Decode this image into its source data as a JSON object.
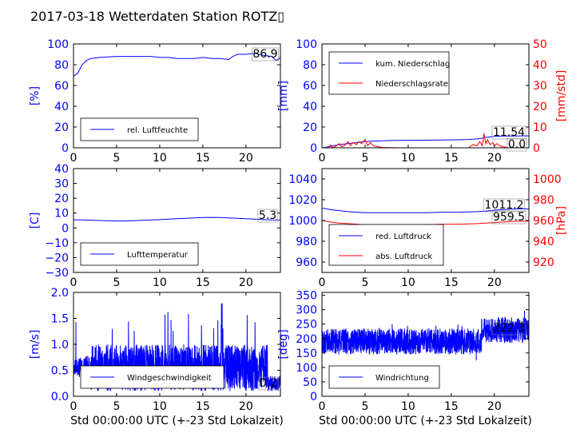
{
  "title": "2017-03-18 Wetterdaten Station ROTZ▯",
  "chart_data": [
    {
      "id": "hum",
      "type": "line",
      "ylabel": "[%]",
      "ylim": [
        0,
        100
      ],
      "yticks": [
        "0",
        "20",
        "40",
        "60",
        "80",
        "100"
      ],
      "xlim": [
        0,
        24
      ],
      "xticks": [
        "0",
        "5",
        "10",
        "15",
        "20"
      ],
      "annotations": [
        "86.9"
      ],
      "series": [
        {
          "name": "rel. Luftfeuchte",
          "color": "#0000ff",
          "x": [
            0,
            0.5,
            1,
            1.5,
            2,
            3,
            4,
            5,
            6,
            7,
            8,
            9,
            10,
            11,
            12,
            13,
            14,
            15,
            16,
            17,
            18,
            18.5,
            19,
            20,
            21,
            22,
            23,
            23.5,
            24
          ],
          "y": [
            69,
            72,
            80,
            84,
            86,
            87,
            87.5,
            88,
            88,
            88,
            88,
            88,
            87,
            87,
            86,
            86,
            86,
            87,
            86,
            86,
            85,
            88,
            90,
            90,
            91,
            89,
            88,
            84,
            86.9
          ]
        }
      ]
    },
    {
      "id": "rain",
      "type": "line",
      "ylabel": "[mm]",
      "ylim": [
        0,
        100
      ],
      "yticks": [
        "0",
        "20",
        "40",
        "60",
        "80",
        "100"
      ],
      "y2label": "[mm/std]",
      "y2lim": [
        0,
        50
      ],
      "y2ticks": [
        "0",
        "10",
        "20",
        "30",
        "40",
        "50"
      ],
      "xlim": [
        0,
        24
      ],
      "xticks": [
        "0",
        "5",
        "10",
        "15",
        "20"
      ],
      "annotations": [
        "11.54",
        "0.0"
      ],
      "series": [
        {
          "name": "kum. Niederschlag",
          "color": "#0000ff",
          "axis": "left",
          "x": [
            0,
            0.5,
            1,
            2,
            3,
            4,
            5,
            6,
            8,
            10,
            12,
            14,
            16,
            17,
            18,
            18.5,
            19,
            20,
            21,
            22,
            23,
            24
          ],
          "y": [
            0,
            0.5,
            1.5,
            3,
            4,
            5,
            6,
            6.5,
            7,
            7.2,
            7.3,
            7.5,
            7.8,
            8,
            8.5,
            9,
            10,
            11,
            11.3,
            11.4,
            11.5,
            11.54
          ]
        },
        {
          "name": "Niederschlagsrate",
          "color": "#ff0000",
          "axis": "right",
          "x": [
            0,
            0.8,
            1,
            1.2,
            1.5,
            2,
            2.3,
            2.6,
            3,
            3.3,
            3.6,
            4,
            4.3,
            4.6,
            5,
            5.3,
            5.6,
            6,
            6.5,
            7,
            9,
            12,
            15,
            17,
            17.5,
            18,
            18.3,
            18.6,
            18.8,
            19,
            19.2,
            19.5,
            19.8,
            20,
            20.3,
            20.6,
            21,
            21.5,
            22,
            23,
            24
          ],
          "y": [
            0,
            0,
            1.5,
            0,
            0.5,
            2,
            0.5,
            1,
            3,
            1,
            2.5,
            1.5,
            3,
            2,
            4,
            1,
            2.5,
            1,
            0.5,
            0.2,
            0,
            0,
            0,
            0,
            1.5,
            1,
            3,
            1,
            7,
            2,
            4,
            1.5,
            2.5,
            1,
            2,
            1,
            0.5,
            0.2,
            0,
            0,
            0
          ]
        }
      ]
    },
    {
      "id": "temp",
      "type": "line",
      "ylabel": "[C]",
      "ylim": [
        -30,
        40
      ],
      "yticks": [
        "−30",
        "−20",
        "−10",
        "0",
        "10",
        "20",
        "30",
        "40"
      ],
      "xlim": [
        0,
        24
      ],
      "xticks": [
        "0",
        "5",
        "10",
        "15",
        "20"
      ],
      "annotations": [
        "5.3"
      ],
      "series": [
        {
          "name": "Lufttemperatur",
          "color": "#0000ff",
          "x": [
            0,
            1,
            2,
            3,
            4,
            5,
            6,
            7,
            8,
            9,
            10,
            11,
            12,
            13,
            14,
            15,
            16,
            17,
            18,
            19,
            20,
            21,
            22,
            23,
            24
          ],
          "y": [
            5.5,
            5.4,
            5.2,
            5,
            4.8,
            4.7,
            4.7,
            4.9,
            5.1,
            5.3,
            5.6,
            5.9,
            6.2,
            6.5,
            6.8,
            7,
            7.1,
            7,
            6.8,
            6.5,
            6.2,
            5.9,
            5.6,
            5.4,
            5.3
          ]
        }
      ]
    },
    {
      "id": "press",
      "type": "line",
      "ylabel": "",
      "ylim": [
        950,
        1050
      ],
      "yticks": [
        "960",
        "980",
        "1000",
        "1020",
        "1040"
      ],
      "y2label": "[hPa]",
      "y2lim": [
        910,
        1010
      ],
      "y2ticks": [
        "920",
        "940",
        "960",
        "980",
        "1000"
      ],
      "xlim": [
        0,
        24
      ],
      "xticks": [
        "0",
        "5",
        "10",
        "15",
        "20"
      ],
      "annotations": [
        "1011.2",
        "959.5"
      ],
      "series": [
        {
          "name": "red. Luftdruck",
          "color": "#0000ff",
          "axis": "left",
          "x": [
            0,
            1,
            2,
            3,
            4,
            5,
            6,
            8,
            10,
            12,
            14,
            16,
            18,
            19,
            20,
            21,
            22,
            23,
            24
          ],
          "y": [
            1012,
            1010.5,
            1009.5,
            1008.5,
            1008,
            1007.5,
            1007.5,
            1007.5,
            1007.5,
            1007.5,
            1008,
            1008,
            1008.5,
            1009,
            1010,
            1010.5,
            1011,
            1011.2,
            1011.2
          ]
        },
        {
          "name": "abs. Luftdruck",
          "color": "#ff0000",
          "axis": "right",
          "x": [
            0,
            1,
            2,
            3,
            4,
            5,
            6,
            8,
            10,
            12,
            14,
            16,
            18,
            19,
            20,
            21,
            22,
            23,
            24
          ],
          "y": [
            960,
            958.5,
            957.5,
            957,
            956.5,
            956,
            956,
            956,
            956,
            956,
            956.5,
            956.5,
            957,
            957.5,
            958,
            958.5,
            959,
            959.3,
            959.5
          ]
        }
      ]
    },
    {
      "id": "wind",
      "type": "line",
      "ylabel": "[m/s]",
      "ylim": [
        0,
        2
      ],
      "yticks": [
        "0.0",
        "0.5",
        "1.0",
        "1.5",
        "2.0"
      ],
      "xlim": [
        0,
        24
      ],
      "xticks": [
        "0",
        "5",
        "10",
        "15",
        "20"
      ],
      "xlabel": "Std 00:00:00 UTC (+-23 Std Lokalzeit)",
      "annotations": [
        "0.2"
      ],
      "series": [
        {
          "name": "Windgeschwindigkeit",
          "color": "#0000ff",
          "noise": {
            "base": 0.55,
            "amp": 0.45,
            "peak_x": 17.2,
            "peak_y": 1.78
          }
        }
      ]
    },
    {
      "id": "dir",
      "type": "line",
      "ylabel": "[deg]",
      "ylim": [
        0,
        360
      ],
      "yticks": [
        "0",
        "50",
        "100",
        "150",
        "200",
        "250",
        "300",
        "350"
      ],
      "xlim": [
        0,
        24
      ],
      "xticks": [
        "0",
        "5",
        "10",
        "15",
        "20"
      ],
      "xlabel": "Std 00:00:00 UTC (+-23 Std Lokalzeit)",
      "annotations": [
        "222.3"
      ],
      "series": [
        {
          "name": "Windrichtung",
          "color": "#0000ff",
          "noise": {
            "base": 190,
            "amp": 45,
            "late_base": 230,
            "late_from": 18.5
          }
        }
      ]
    }
  ]
}
